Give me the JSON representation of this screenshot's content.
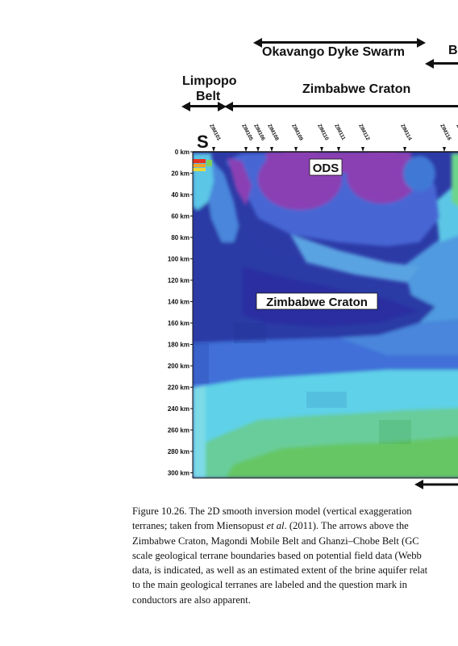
{
  "headers": {
    "okavango": "Okavango Dyke Swarm",
    "cut_right": "B",
    "limpopo_line1": "Limpopo",
    "limpopo_line2": "Belt",
    "zimbabwe": "Zimbabwe Craton"
  },
  "section": {
    "orientation_label": "S",
    "stations": [
      "ZIM101",
      "ZIM105",
      "ZIM106",
      "ZIM108",
      "ZIM109",
      "ZIM110",
      "ZIM111",
      "ZIM112",
      "ZIM114",
      "ZIM116",
      "ZIM"
    ],
    "depth_ticks": [
      "0 km",
      "20 km",
      "40 km",
      "60 km",
      "80 km",
      "100 km",
      "120 km",
      "140 km",
      "160 km",
      "180 km",
      "200 km",
      "220 km",
      "240 km",
      "260 km",
      "280 km",
      "300 km"
    ],
    "labels": {
      "ods": "ODS",
      "craton": "Zimbabwe Craton"
    },
    "colors": {
      "magenta": "#8a3fb3",
      "dark_blue": "#2c3aa6",
      "blue": "#3f5fd0",
      "light_blue": "#59b8ec",
      "cyan": "#5fd1e8",
      "green": "#66c663",
      "red": "#e53222",
      "orange": "#f0a226"
    }
  },
  "caption": {
    "line1_before": "Figure 10.26.  The 2D smooth inversion model (vertical exaggeration",
    "line2_a": "terranes; taken from Miensopust ",
    "line2_italic": "et al",
    "line2_b": ". (2011). The arrows above the",
    "line3": "Zimbabwe Craton, Magondi Mobile Belt and Ghanzi–Chobe Belt (GC",
    "line4": "scale geological terrane boundaries based on potential field data (Webb",
    "line5": "data, is indicated, as well as an estimated extent of the brine aquifer relat",
    "line6": "to the main geological terranes are labeled and the question mark in",
    "line7": "conductors are also apparent."
  }
}
